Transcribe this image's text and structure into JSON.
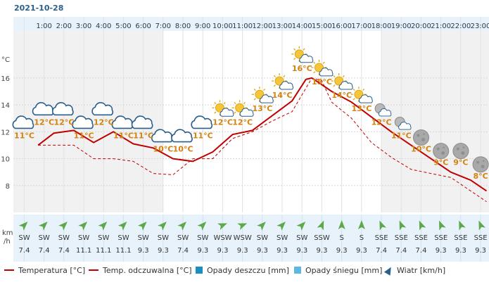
{
  "date": "2021-10-28",
  "y_unit": "°C",
  "wind_unit_line1": "km",
  "wind_unit_line2": "/h",
  "colors": {
    "temperature": "#c00000",
    "feels_like": "#c00000",
    "rain": "#1a8fbf",
    "snow": "#5cb8e0",
    "wind": "#2a5f8c",
    "temp_label": "#d4820e"
  },
  "chart_data": {
    "type": "line",
    "hours": [
      "1:00",
      "2:00",
      "3:00",
      "4:00",
      "5:00",
      "6:00",
      "7:00",
      "8:00",
      "9:00",
      "10:00",
      "11:00",
      "12:00",
      "13:00",
      "14:00",
      "15:00",
      "16:00",
      "17:00",
      "18:00",
      "19:00",
      "20:00",
      "21:00",
      "22:00",
      "23:00"
    ],
    "ylim": [
      6,
      19.5
    ],
    "yticks": [
      8,
      10,
      12,
      14,
      16
    ],
    "grid": true,
    "series": [
      {
        "name": "Temperatura [°C]",
        "style": "solid",
        "points": [
          [
            0.2,
            11.0
          ],
          [
            1,
            11.9
          ],
          [
            2,
            12.1
          ],
          [
            3,
            11.2
          ],
          [
            4,
            12.0
          ],
          [
            5,
            11.1
          ],
          [
            6,
            10.8
          ],
          [
            7,
            10.0
          ],
          [
            8,
            9.8
          ],
          [
            9,
            10.5
          ],
          [
            10,
            11.8
          ],
          [
            11,
            12.1
          ],
          [
            12,
            13.2
          ],
          [
            13,
            14.3
          ],
          [
            13.7,
            15.9
          ],
          [
            14,
            16.0
          ],
          [
            14.3,
            15.7
          ],
          [
            15,
            15.0
          ],
          [
            16,
            14.2
          ],
          [
            17,
            13.1
          ],
          [
            18,
            12.0
          ],
          [
            19,
            11.0
          ],
          [
            20,
            10.0
          ],
          [
            21,
            9.0
          ],
          [
            22,
            8.4
          ],
          [
            22.8,
            7.6
          ]
        ]
      },
      {
        "name": "Temp. odczuwalna [°C]",
        "style": "dashed",
        "points": [
          [
            0.2,
            11.0
          ],
          [
            1,
            11.0
          ],
          [
            2,
            11.0
          ],
          [
            3,
            10.0
          ],
          [
            4,
            10.0
          ],
          [
            5,
            9.8
          ],
          [
            6,
            8.9
          ],
          [
            7,
            8.8
          ],
          [
            8,
            10.0
          ],
          [
            9,
            10.0
          ],
          [
            10,
            11.5
          ],
          [
            11,
            12.0
          ],
          [
            12,
            12.8
          ],
          [
            13,
            13.5
          ],
          [
            14,
            16.0
          ],
          [
            14.5,
            15.8
          ],
          [
            15,
            14.2
          ],
          [
            16,
            13.0
          ],
          [
            17,
            11.2
          ],
          [
            18,
            10.1
          ],
          [
            19,
            9.2
          ],
          [
            20,
            8.9
          ],
          [
            21,
            8.6
          ],
          [
            22,
            7.6
          ],
          [
            22.8,
            6.8
          ]
        ]
      }
    ],
    "hourly": [
      {
        "temp_label": "11°C",
        "temp": 11,
        "icon": "night-cloudy-icon",
        "wind_dir": "SW",
        "wind_speed": "7.4"
      },
      {
        "temp_label": "12°C",
        "temp": 12,
        "icon": "night-cloudy-icon",
        "wind_dir": "SW",
        "wind_speed": "7.4"
      },
      {
        "temp_label": "12°C",
        "temp": 12,
        "icon": "night-cloudy-icon",
        "wind_dir": "SW",
        "wind_speed": "7.4"
      },
      {
        "temp_label": "11°C",
        "temp": 11,
        "icon": "night-cloudy-icon",
        "wind_dir": "SW",
        "wind_speed": "11.1"
      },
      {
        "temp_label": "12°C",
        "temp": 12,
        "icon": "night-cloudy-icon",
        "wind_dir": "SW",
        "wind_speed": "11.1"
      },
      {
        "temp_label": "11°C",
        "temp": 11,
        "icon": "night-cloudy-icon",
        "wind_dir": "SW",
        "wind_speed": "11.1"
      },
      {
        "temp_label": "11°C",
        "temp": 11,
        "icon": "night-cloudy-icon",
        "wind_dir": "SW",
        "wind_speed": "9.3"
      },
      {
        "temp_label": "10°C",
        "temp": 10,
        "icon": "night-cloudy-icon",
        "wind_dir": "SW",
        "wind_speed": "9.3"
      },
      {
        "temp_label": "10°C",
        "temp": 10,
        "icon": "night-cloudy-icon",
        "wind_dir": "SW",
        "wind_speed": "7.4"
      },
      {
        "temp_label": "11°C",
        "temp": 11,
        "icon": "night-cloudy-icon",
        "wind_dir": "SW",
        "wind_speed": "9.3"
      },
      {
        "temp_label": "12°C",
        "temp": 12,
        "icon": "partly-sunny-icon",
        "wind_dir": "WSW",
        "wind_speed": "9.3"
      },
      {
        "temp_label": "12°C",
        "temp": 12,
        "icon": "partly-sunny-icon",
        "wind_dir": "WSW",
        "wind_speed": "9.3"
      },
      {
        "temp_label": "13°C",
        "temp": 13,
        "icon": "partly-sunny-icon",
        "wind_dir": "SW",
        "wind_speed": "9.3"
      },
      {
        "temp_label": "14°C",
        "temp": 14,
        "icon": "partly-sunny-icon",
        "wind_dir": "SW",
        "wind_speed": "9.3"
      },
      {
        "temp_label": "16°C",
        "temp": 16,
        "icon": "partly-sunny-icon",
        "wind_dir": "SW",
        "wind_speed": "9.3"
      },
      {
        "temp_label": "15°C",
        "temp": 15,
        "icon": "partly-sunny-icon",
        "wind_dir": "SSW",
        "wind_speed": "9.3"
      },
      {
        "temp_label": "14°C",
        "temp": 14,
        "icon": "partly-sunny-icon",
        "wind_dir": "S",
        "wind_speed": "9.3"
      },
      {
        "temp_label": "13°C",
        "temp": 13,
        "icon": "partly-sunny-icon",
        "wind_dir": "S",
        "wind_speed": "9.3"
      },
      {
        "temp_label": "12°C",
        "temp": 12,
        "icon": "night-partly-cloudy-icon",
        "wind_dir": "SSE",
        "wind_speed": "7.4"
      },
      {
        "temp_label": "11°C",
        "temp": 11,
        "icon": "night-partly-cloudy-icon",
        "wind_dir": "SSE",
        "wind_speed": "7.4"
      },
      {
        "temp_label": "10°C",
        "temp": 10,
        "icon": "moon-icon",
        "wind_dir": "SSE",
        "wind_speed": "7.4"
      },
      {
        "temp_label": "9°C",
        "temp": 9,
        "icon": "moon-icon",
        "wind_dir": "SSE",
        "wind_speed": "9.3"
      },
      {
        "temp_label": "9°C",
        "temp": 9,
        "icon": "moon-icon",
        "wind_dir": "SSE",
        "wind_speed": "9.3"
      },
      {
        "temp_label": "8°C",
        "temp": 8,
        "icon": "moon-icon",
        "wind_dir": "SSE",
        "wind_speed": "9.3"
      }
    ]
  },
  "legend": {
    "temperature": "Temperatura [°C]",
    "feels_like": "Temp. odczuwalna [°C]",
    "rain": "Opady deszczu [mm]",
    "snow": "Opady śniegu [mm]",
    "wind": "Wiatr [km/h]"
  }
}
